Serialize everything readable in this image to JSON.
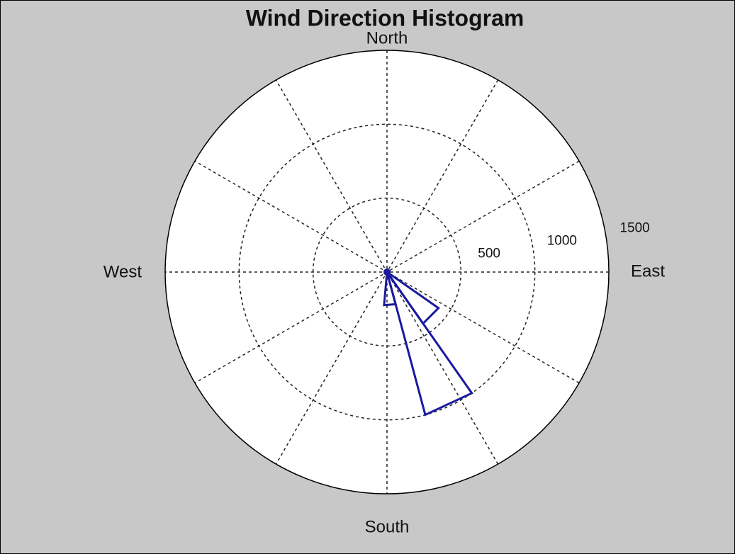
{
  "chart_data": {
    "type": "polar_histogram",
    "title": "Wind Direction Histogram",
    "direction_labels": [
      "North",
      "East",
      "South",
      "West"
    ],
    "bins": [
      125,
      145,
      165,
      185
    ],
    "values": [
      425,
      1000,
      225
    ],
    "color": "#1a1aa0",
    "rlim": [
      0,
      1500
    ],
    "rticks": [
      500,
      1000,
      1500
    ],
    "grid": true
  }
}
